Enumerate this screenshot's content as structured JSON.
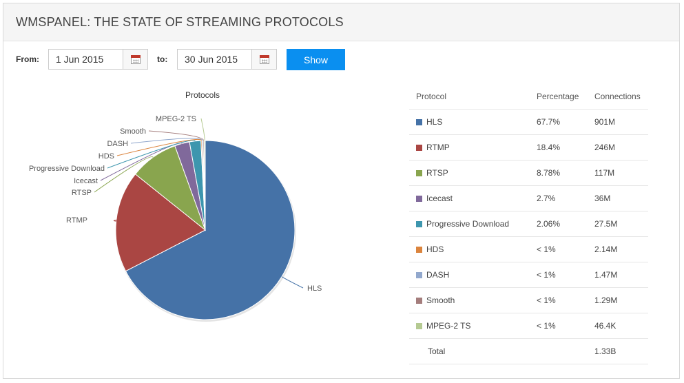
{
  "header": {
    "title": "WMSPANEL: THE STATE OF STREAMING PROTOCOLS"
  },
  "filters": {
    "from_label": "From:",
    "from_value": "1 Jun 2015",
    "to_label": "to:",
    "to_value": "30 Jun 2015",
    "show_label": "Show"
  },
  "table": {
    "headers": [
      "Protocol",
      "Percentage",
      "Connections"
    ],
    "rows": [
      {
        "protocol": "HLS",
        "percentage": "67.7%",
        "connections": "901M",
        "color": "#4572a7"
      },
      {
        "protocol": "RTMP",
        "percentage": "18.4%",
        "connections": "246M",
        "color": "#aa4643"
      },
      {
        "protocol": "RTSP",
        "percentage": "8.78%",
        "connections": "117M",
        "color": "#89a54e"
      },
      {
        "protocol": "Icecast",
        "percentage": "2.7%",
        "connections": "36M",
        "color": "#80699b"
      },
      {
        "protocol": "Progressive Download",
        "percentage": "2.06%",
        "connections": "27.5M",
        "color": "#3d96ae"
      },
      {
        "protocol": "HDS",
        "percentage": "< 1%",
        "connections": "2.14M",
        "color": "#db843d"
      },
      {
        "protocol": "DASH",
        "percentage": "< 1%",
        "connections": "1.47M",
        "color": "#92a8cd"
      },
      {
        "protocol": "Smooth",
        "percentage": "< 1%",
        "connections": "1.29M",
        "color": "#a47d7c"
      },
      {
        "protocol": "MPEG-2 TS",
        "percentage": "< 1%",
        "connections": "46.4K",
        "color": "#b5ca92"
      }
    ],
    "total": {
      "label": "Total",
      "connections": "1.33B"
    }
  },
  "chart_data": {
    "type": "pie",
    "title": "Protocols",
    "slices": [
      {
        "label": "HLS",
        "value": 67.7,
        "color": "#4572a7"
      },
      {
        "label": "RTMP",
        "value": 18.4,
        "color": "#aa4643"
      },
      {
        "label": "RTSP",
        "value": 8.78,
        "color": "#89a54e"
      },
      {
        "label": "Icecast",
        "value": 2.7,
        "color": "#80699b"
      },
      {
        "label": "Progressive Download",
        "value": 2.06,
        "color": "#3d96ae"
      },
      {
        "label": "HDS",
        "value": 0.16,
        "color": "#db843d"
      },
      {
        "label": "DASH",
        "value": 0.11,
        "color": "#92a8cd"
      },
      {
        "label": "Smooth",
        "value": 0.1,
        "color": "#a47d7c"
      },
      {
        "label": "MPEG-2 TS",
        "value": 0.0035,
        "color": "#b5ca92"
      }
    ]
  }
}
